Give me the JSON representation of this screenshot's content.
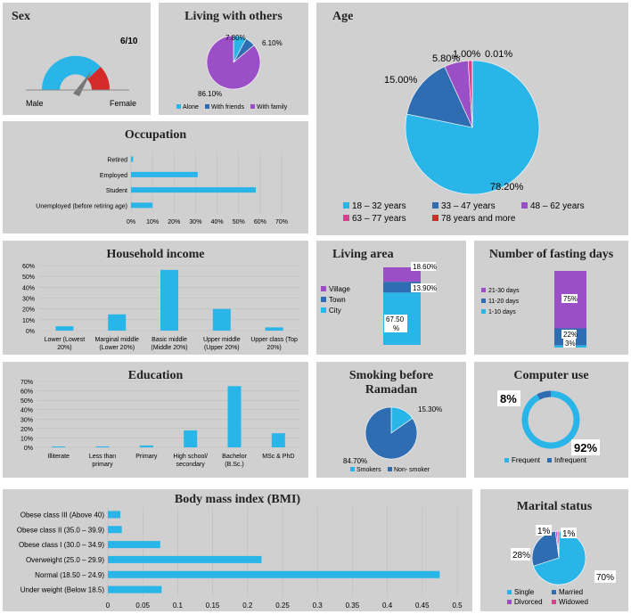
{
  "colors": {
    "blue": "#29b5e8",
    "dblue": "#2f6db3",
    "purple": "#9b4fc6",
    "pink": "#d5418a",
    "red": "#d42a2a",
    "panel": "#d0d0d0",
    "grid": "#bdbdbd"
  },
  "charts": {
    "sex": {
      "chart_data": {
        "type": "gauge",
        "title": "Sex",
        "value": 6,
        "max": 10,
        "value_label": "6/10",
        "min_label": "Male",
        "max_label": "Female"
      }
    },
    "living_with": {
      "chart_data": {
        "type": "pie",
        "title": "Living with others",
        "labels": [
          "Alone",
          "With friends",
          "With family"
        ],
        "values": [
          7.8,
          6.1,
          86.1
        ],
        "value_labels": [
          "7.80%",
          "6.10%",
          "86.10%"
        ],
        "colors": [
          "#29b5e8",
          "#2f6db3",
          "#9b4fc6"
        ],
        "legend": [
          "Alone",
          "With friends",
          "With family"
        ]
      }
    },
    "age": {
      "chart_data": {
        "type": "pie",
        "title": "Age",
        "labels": [
          "18 – 32 years",
          "33 – 47 years",
          "48 – 62 years",
          "63 – 77 years",
          "78 years and more"
        ],
        "values": [
          78.2,
          15.0,
          5.8,
          1.0,
          0.01
        ],
        "value_labels": [
          "78.20%",
          "15.00%",
          "5.80%",
          "1.00%",
          "0.01%"
        ],
        "colors": [
          "#29b5e8",
          "#2f6db3",
          "#9b4fc6",
          "#d5418a",
          "#d42a2a"
        ],
        "legend": [
          "18 – 32 years",
          "33 – 47 years",
          "48 – 62 years",
          "63 – 77 years",
          "78 years and more"
        ]
      }
    },
    "occupation": {
      "chart_data": {
        "type": "bar",
        "orientation": "horizontal",
        "title": "Occupation",
        "categories": [
          "Retired",
          "Employed",
          "Student",
          "Unemployed (before retiring age)"
        ],
        "values": [
          1,
          31,
          58,
          10
        ],
        "xlim": [
          0,
          70
        ],
        "ticks": [
          "0%",
          "10%",
          "20%",
          "30%",
          "40%",
          "50%",
          "60%",
          "70%"
        ]
      }
    },
    "income": {
      "chart_data": {
        "type": "bar",
        "title": "Household income",
        "categories": [
          "Lower (Lowest 20%)",
          "Marginal middle (Lower 20%)",
          "Basic middle (Middle 20%)",
          "Upper middle (Upper 20%)",
          "Upper class (Top 20%)"
        ],
        "values": [
          4,
          15,
          56,
          20,
          3
        ],
        "ylim": [
          0,
          60
        ],
        "ticks": [
          "0%",
          "10%",
          "20%",
          "30%",
          "40%",
          "50%",
          "60%"
        ]
      }
    },
    "living_area": {
      "chart_data": {
        "type": "bar",
        "stacked": true,
        "title": "Living area",
        "series": [
          {
            "name": "City",
            "value": 67.5,
            "label": "67.50 %",
            "color": "#29b5e8"
          },
          {
            "name": "Town",
            "value": 13.9,
            "label": "13.90%",
            "color": "#2f6db3"
          },
          {
            "name": "Village",
            "value": 18.6,
            "label": "18.60%",
            "color": "#9b4fc6"
          }
        ],
        "legend": [
          "Village",
          "Town",
          "City"
        ]
      }
    },
    "fasting": {
      "chart_data": {
        "type": "bar",
        "stacked": true,
        "title": "Number of fasting days",
        "series": [
          {
            "name": "1-10 days",
            "value": 3,
            "label": "3%",
            "color": "#29b5e8"
          },
          {
            "name": "11-20 days",
            "value": 22,
            "label": "22%",
            "color": "#2f6db3"
          },
          {
            "name": "21-30 days",
            "value": 75,
            "label": "75%",
            "color": "#9b4fc6"
          }
        ],
        "legend": [
          "21-30 days",
          "11-20 days",
          "1-10 days"
        ]
      }
    },
    "education": {
      "chart_data": {
        "type": "bar",
        "title": "Education",
        "categories": [
          "Illiterate",
          "Less than primary",
          "Primary",
          "High school/ secondary",
          "Bachelor (B.Sc.)",
          "MSc & PhD"
        ],
        "values": [
          0,
          1,
          2,
          18,
          65,
          15
        ],
        "ylim": [
          0,
          70
        ],
        "ticks": [
          "0%",
          "10%",
          "20%",
          "30%",
          "40%",
          "50%",
          "60%",
          "70%"
        ]
      }
    },
    "smoking": {
      "chart_data": {
        "type": "pie",
        "title": "Smoking before Ramadan",
        "title_lines": [
          "Smoking before",
          "Ramadan"
        ],
        "labels": [
          "Smokers",
          "Non- smoker"
        ],
        "values": [
          15.3,
          84.7
        ],
        "value_labels": [
          "15.30%",
          "84.70%"
        ],
        "colors": [
          "#29b5e8",
          "#2f6db3"
        ],
        "legend": [
          "Smokers",
          "Non- smoker"
        ]
      }
    },
    "computer": {
      "chart_data": {
        "type": "donut",
        "title": "Computer use",
        "labels": [
          "Frequent",
          "Infrequent"
        ],
        "values": [
          92,
          8
        ],
        "value_labels": [
          "92%",
          "8%"
        ],
        "colors": [
          "#29b5e8",
          "#2f6db3"
        ],
        "legend": [
          "Frequent",
          "Infrequent"
        ]
      }
    },
    "bmi": {
      "chart_data": {
        "type": "bar",
        "orientation": "horizontal",
        "title": "Body mass index (BMI)",
        "categories": [
          "Obese class III (Above 40)",
          "Obese class II (35.0 – 39.9)",
          "Obese class I (30.0 – 34.9)",
          "Overweight (25.0 – 29.9)",
          "Normal (18.50 – 24.9)",
          "Under weight (Below 18.5)"
        ],
        "values": [
          0.018,
          0.02,
          0.075,
          0.22,
          0.475,
          0.077
        ],
        "xlim": [
          0,
          0.5
        ],
        "ticks": [
          "0",
          "0.05",
          "0.1",
          "0.15",
          "0.2",
          "0.25",
          "0.3",
          "0.35",
          "0.4",
          "0.45",
          "0.5"
        ]
      }
    },
    "marital": {
      "chart_data": {
        "type": "pie",
        "title": "Marital status",
        "labels": [
          "Single",
          "Married",
          "Divorced",
          "Widowed"
        ],
        "values": [
          70,
          28,
          1,
          1
        ],
        "value_labels": [
          "70%",
          "28%",
          "1%",
          "1%"
        ],
        "colors": [
          "#29b5e8",
          "#2f6db3",
          "#9b4fc6",
          "#d5418a"
        ],
        "legend": [
          "Single",
          "Married",
          "Divorced",
          "Widowed"
        ]
      }
    }
  }
}
